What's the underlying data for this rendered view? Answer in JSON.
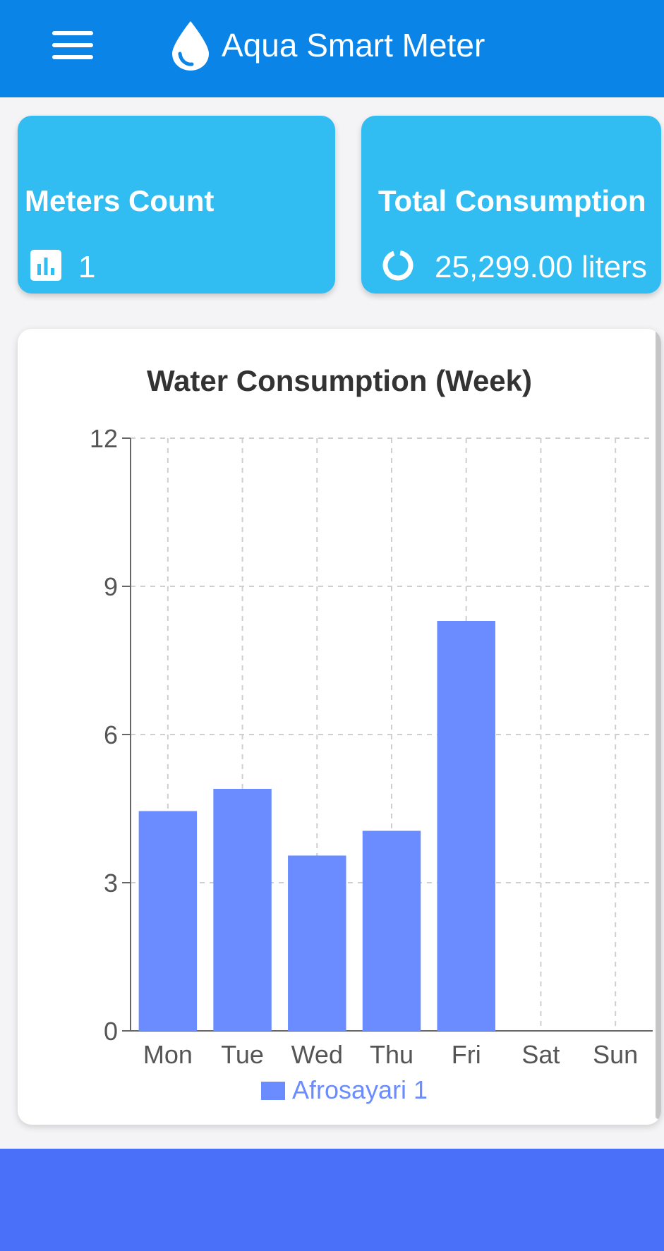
{
  "app_bar": {
    "title": "Aqua Smart Meter",
    "menu_icon": "hamburger-menu-icon",
    "logo_icon": "water-drop-icon",
    "background_color": "#0a84e6"
  },
  "cards": [
    {
      "title": "Meters Count",
      "value": "1",
      "icon": "bar-chart-icon",
      "color": "#32bdf2"
    },
    {
      "title": "Total Consumption",
      "value": "25,299.00 liters",
      "icon": "donut-chart-icon",
      "color": "#32bdf2"
    }
  ],
  "chart_data": {
    "type": "bar",
    "title": "Water Consumption (Week)",
    "categories": [
      "Mon",
      "Tue",
      "Wed",
      "Thu",
      "Fri",
      "Sat",
      "Sun"
    ],
    "series": [
      {
        "name": "Afrosayari 1",
        "values": [
          4.45,
          4.9,
          3.55,
          4.05,
          8.3,
          0,
          0
        ],
        "color": "#6a8cff"
      }
    ],
    "ylim": [
      0,
      12
    ],
    "yticks": [
      "0",
      "3",
      "6",
      "9",
      "12"
    ],
    "grid": true,
    "legend": "bottom"
  },
  "bottom_bar": {
    "color": "#4a6ff8"
  }
}
